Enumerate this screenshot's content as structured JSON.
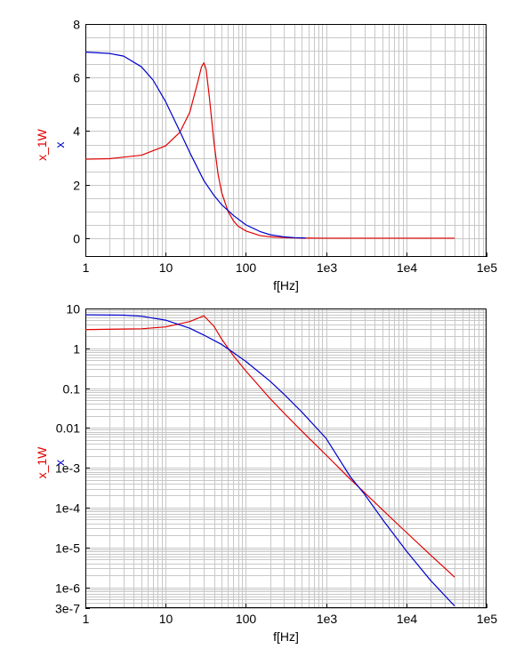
{
  "chart_data": [
    {
      "type": "line",
      "xscale": "log",
      "xlim": [
        1,
        100000
      ],
      "ylim": [
        -0.7,
        8
      ],
      "xlabel": "f[Hz]",
      "x_ticks": [
        {
          "value": 1,
          "label": "1"
        },
        {
          "value": 10,
          "label": "10"
        },
        {
          "value": 100,
          "label": "100"
        },
        {
          "value": 1000,
          "label": "1e3"
        },
        {
          "value": 10000,
          "label": "1e4"
        },
        {
          "value": 100000,
          "label": "1e5"
        }
      ],
      "y_ticks": [
        {
          "value": 0,
          "label": "0"
        },
        {
          "value": 2,
          "label": "2"
        },
        {
          "value": 4,
          "label": "4"
        },
        {
          "value": 6,
          "label": "6"
        },
        {
          "value": 8,
          "label": "8"
        }
      ],
      "grid": true,
      "series": [
        {
          "name": "x_1W",
          "color": "#e00000",
          "points": [
            [
              1,
              2.95
            ],
            [
              2,
              2.97
            ],
            [
              5,
              3.1
            ],
            [
              10,
              3.45
            ],
            [
              15,
              3.95
            ],
            [
              20,
              4.7
            ],
            [
              25,
              5.8
            ],
            [
              28,
              6.4
            ],
            [
              30,
              6.55
            ],
            [
              32,
              6.3
            ],
            [
              35,
              5.3
            ],
            [
              40,
              3.6
            ],
            [
              45,
              2.4
            ],
            [
              50,
              1.7
            ],
            [
              60,
              1.0
            ],
            [
              70,
              0.65
            ],
            [
              80,
              0.45
            ],
            [
              100,
              0.27
            ],
            [
              150,
              0.1
            ],
            [
              200,
              0.05
            ],
            [
              300,
              0.02
            ],
            [
              500,
              0.005
            ],
            [
              1000,
              0.0
            ],
            [
              10000,
              0.0
            ],
            [
              40000,
              0.0
            ]
          ]
        },
        {
          "name": "x",
          "color": "#0000cc",
          "points": [
            [
              1,
              6.95
            ],
            [
              2,
              6.9
            ],
            [
              3,
              6.8
            ],
            [
              5,
              6.4
            ],
            [
              7,
              5.9
            ],
            [
              10,
              5.1
            ],
            [
              15,
              4.0
            ],
            [
              20,
              3.2
            ],
            [
              30,
              2.15
            ],
            [
              40,
              1.6
            ],
            [
              50,
              1.25
            ],
            [
              70,
              0.85
            ],
            [
              100,
              0.5
            ],
            [
              150,
              0.25
            ],
            [
              200,
              0.13
            ],
            [
              300,
              0.05
            ],
            [
              400,
              0.02
            ],
            [
              550,
              0.01
            ]
          ]
        }
      ]
    },
    {
      "type": "line",
      "xscale": "log",
      "yscale": "log",
      "xlim": [
        1,
        100000
      ],
      "ylim": [
        3e-07,
        10
      ],
      "xlabel": "f[Hz]",
      "x_ticks": [
        {
          "value": 1,
          "label": "1"
        },
        {
          "value": 10,
          "label": "10"
        },
        {
          "value": 100,
          "label": "100"
        },
        {
          "value": 1000,
          "label": "1e3"
        },
        {
          "value": 10000,
          "label": "1e4"
        },
        {
          "value": 100000,
          "label": "1e5"
        }
      ],
      "y_ticks": [
        {
          "value": 10,
          "label": "10"
        },
        {
          "value": 1,
          "label": "1"
        },
        {
          "value": 0.1,
          "label": "0.1"
        },
        {
          "value": 0.01,
          "label": "0.01"
        },
        {
          "value": 0.001,
          "label": "1e-3"
        },
        {
          "value": 0.0001,
          "label": "1e-4"
        },
        {
          "value": 1e-05,
          "label": "1e-5"
        },
        {
          "value": 1e-06,
          "label": "1e-6"
        },
        {
          "value": 3e-07,
          "label": "3e-7"
        }
      ],
      "grid": true,
      "series": [
        {
          "name": "x_1W",
          "color": "#e00000",
          "points": [
            [
              1,
              2.95
            ],
            [
              5,
              3.1
            ],
            [
              10,
              3.45
            ],
            [
              20,
              4.7
            ],
            [
              30,
              6.55
            ],
            [
              40,
              3.6
            ],
            [
              50,
              1.7
            ],
            [
              70,
              0.65
            ],
            [
              100,
              0.27
            ],
            [
              200,
              0.055
            ],
            [
              300,
              0.0235
            ],
            [
              500,
              0.0083
            ],
            [
              1000,
              0.0021
            ],
            [
              2000,
              0.00052
            ],
            [
              3000,
              0.00024
            ],
            [
              5000,
              9e-05
            ],
            [
              10000,
              2.4e-05
            ],
            [
              20000,
              6.5e-06
            ],
            [
              40000,
              1.8e-06
            ]
          ]
        },
        {
          "name": "x",
          "color": "#0000cc",
          "points": [
            [
              1,
              6.95
            ],
            [
              3,
              6.8
            ],
            [
              5,
              6.4
            ],
            [
              10,
              5.1
            ],
            [
              20,
              3.2
            ],
            [
              30,
              2.15
            ],
            [
              50,
              1.25
            ],
            [
              100,
              0.47
            ],
            [
              200,
              0.15
            ],
            [
              300,
              0.07
            ],
            [
              500,
              0.025
            ],
            [
              1000,
              0.0055
            ],
            [
              2000,
              0.0006
            ],
            [
              3000,
              0.00022
            ],
            [
              5000,
              5.2e-05
            ],
            [
              10000,
              8.2e-06
            ],
            [
              20000,
              1.5e-06
            ],
            [
              40000,
              3.4e-07
            ]
          ]
        }
      ]
    }
  ]
}
